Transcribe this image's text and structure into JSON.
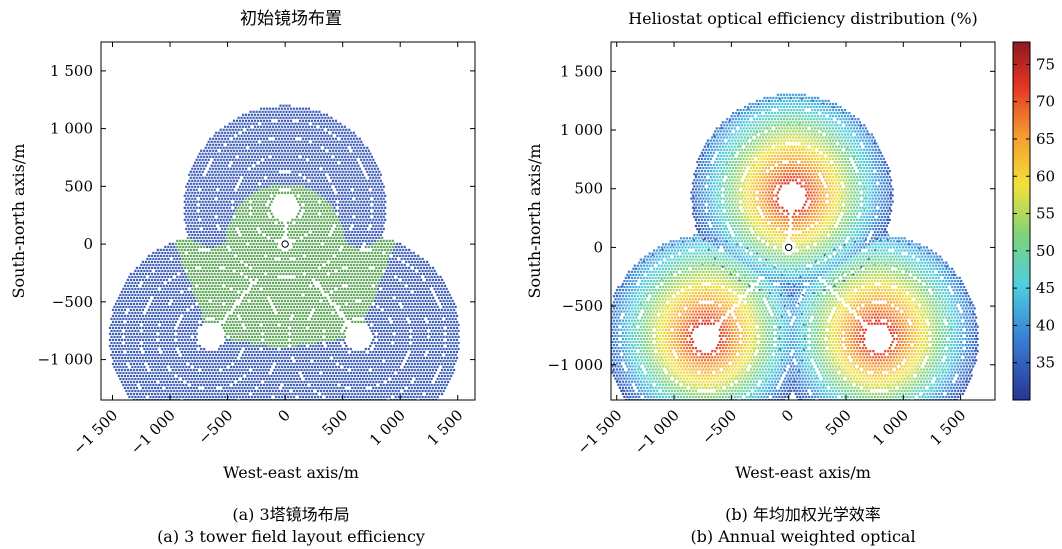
{
  "chart_data": [
    {
      "type": "scatter",
      "title": "初始镜场布置",
      "xlabel": "West-east axis/m",
      "ylabel": "South-north axis/m",
      "xlim": [
        -1600,
        1650
      ],
      "ylim": [
        -1350,
        1750
      ],
      "x_ticks": [
        -1500,
        -1000,
        -500,
        0,
        500,
        1000,
        1500
      ],
      "x_tick_labels": [
        "−1 500",
        "−1 000",
        "−500",
        "0",
        "500",
        "1 000",
        "1 500"
      ],
      "y_ticks": [
        -1000,
        -500,
        0,
        500,
        1000,
        1500
      ],
      "y_tick_labels": [
        "−1 000",
        "−500",
        "0",
        "500",
        "1 000",
        "1 500"
      ],
      "towers": [
        {
          "x": -650,
          "y": -800
        },
        {
          "x": 640,
          "y": -800
        },
        {
          "x": 0,
          "y": 320
        }
      ],
      "central_receiver": {
        "x": 0,
        "y": 0
      },
      "field_colors": {
        "outer": "#3f5fb8",
        "inner": "#5fa85a"
      },
      "caption_cn": "(a) 3塔镜场布局",
      "caption_en": "(a) 3 tower field layout efficiency"
    },
    {
      "type": "heatmap",
      "title": "Heliostat optical efficiency distribution (%)",
      "xlabel": "West-east axis/m",
      "ylabel": "South-north axis/m",
      "xlim": [
        -1550,
        1800
      ],
      "ylim": [
        -1300,
        1750
      ],
      "x_ticks": [
        -1500,
        -1000,
        -500,
        0,
        500,
        1000,
        1500
      ],
      "x_tick_labels": [
        "−1 500",
        "−1 000",
        "−500",
        "0",
        "500",
        "1 000",
        "1 500"
      ],
      "y_ticks": [
        -1000,
        -500,
        0,
        500,
        1000,
        1500
      ],
      "y_tick_labels": [
        "−1 000",
        "−500",
        "0",
        "500",
        "1 000",
        "1 500"
      ],
      "towers": [
        {
          "x": -720,
          "y": -770
        },
        {
          "x": 780,
          "y": -770
        },
        {
          "x": 30,
          "y": 430
        }
      ],
      "central_receiver": {
        "x": 0,
        "y": 0
      },
      "colorbar": {
        "min": 30,
        "max": 78,
        "ticks": [
          35,
          40,
          45,
          50,
          55,
          60,
          65,
          70,
          75
        ],
        "tick_labels": [
          "35",
          "40",
          "45",
          "50",
          "55",
          "60",
          "65",
          "70",
          "75"
        ]
      },
      "efficiency_range_percent": [
        33,
        78
      ],
      "caption_cn": "(b) 年均加权光学效率",
      "caption_en": "(b) Annual weighted optical"
    }
  ]
}
